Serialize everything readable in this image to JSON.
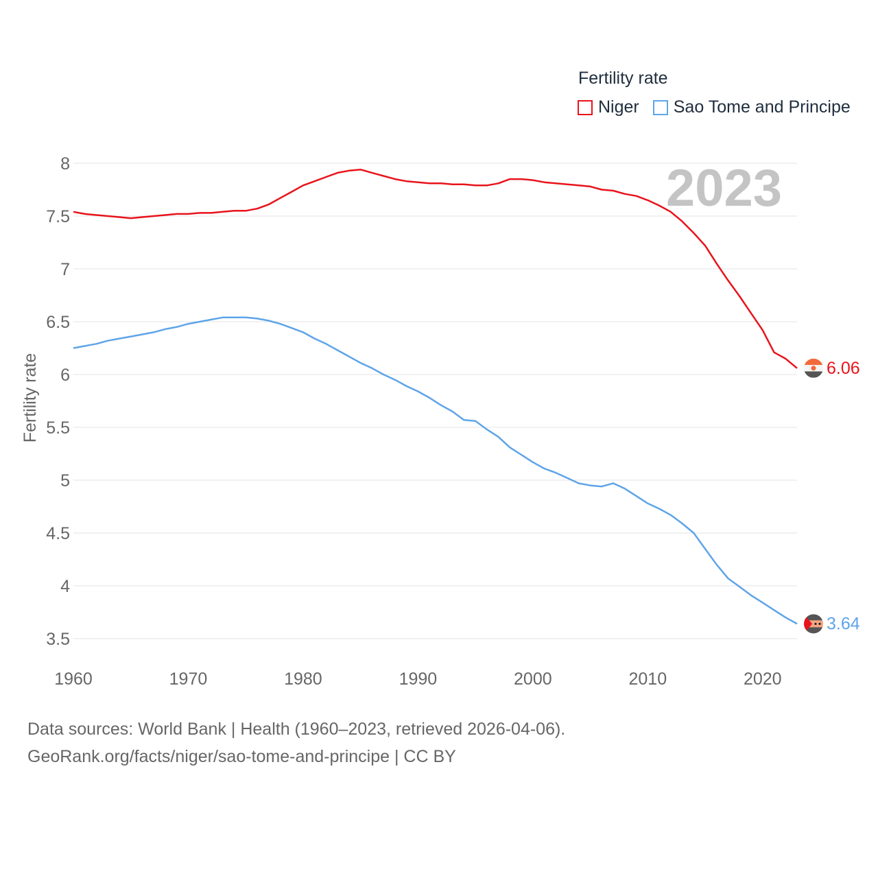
{
  "legend": {
    "title": "Fertility rate",
    "items": [
      {
        "label": "Niger",
        "color": "#e8131b"
      },
      {
        "label": "Sao Tome and Principe",
        "color": "#5ea4e8"
      }
    ]
  },
  "footer": {
    "line1": "Data sources: World Bank | Health (1960–2023, retrieved 2026-04-06).",
    "line2": "GeoRank.org/facts/niger/sao-tome-and-principe | CC BY"
  },
  "chart_data": {
    "type": "line",
    "title": "Fertility rate",
    "xlabel": "",
    "ylabel": "Fertility rate",
    "year_label": "2023",
    "xlim": [
      1960,
      2023
    ],
    "ylim": [
      3.5,
      8
    ],
    "x_ticks": [
      1960,
      1970,
      1980,
      1990,
      2000,
      2010,
      2020
    ],
    "y_ticks": [
      3.5,
      4,
      4.5,
      5,
      5.5,
      6,
      6.5,
      7,
      7.5,
      8
    ],
    "y_tick_labels": [
      "3.5",
      "4",
      "4.5",
      "5",
      "5.5",
      "6",
      "6.5",
      "7",
      "7.5",
      "8"
    ],
    "grid": true,
    "series": [
      {
        "name": "Niger",
        "color": "#e8131b",
        "end_label": "6.06",
        "x": [
          1960,
          1961,
          1962,
          1963,
          1964,
          1965,
          1966,
          1967,
          1968,
          1969,
          1970,
          1971,
          1972,
          1973,
          1974,
          1975,
          1976,
          1977,
          1978,
          1979,
          1980,
          1981,
          1982,
          1983,
          1984,
          1985,
          1986,
          1987,
          1988,
          1989,
          1990,
          1991,
          1992,
          1993,
          1994,
          1995,
          1996,
          1997,
          1998,
          1999,
          2000,
          2001,
          2002,
          2003,
          2004,
          2005,
          2006,
          2007,
          2008,
          2009,
          2010,
          2011,
          2012,
          2013,
          2014,
          2015,
          2016,
          2017,
          2018,
          2019,
          2020,
          2021,
          2022,
          2023
        ],
        "values": [
          7.54,
          7.52,
          7.51,
          7.5,
          7.49,
          7.48,
          7.49,
          7.5,
          7.51,
          7.52,
          7.52,
          7.53,
          7.53,
          7.54,
          7.55,
          7.55,
          7.57,
          7.61,
          7.67,
          7.73,
          7.79,
          7.83,
          7.87,
          7.91,
          7.93,
          7.94,
          7.91,
          7.88,
          7.85,
          7.83,
          7.82,
          7.81,
          7.81,
          7.8,
          7.8,
          7.79,
          7.79,
          7.81,
          7.85,
          7.85,
          7.84,
          7.82,
          7.81,
          7.8,
          7.79,
          7.78,
          7.75,
          7.74,
          7.71,
          7.69,
          7.65,
          7.6,
          7.54,
          7.45,
          7.34,
          7.22,
          7.05,
          6.89,
          6.74,
          6.58,
          6.42,
          6.21,
          6.15,
          6.06
        ]
      },
      {
        "name": "Sao Tome and Principe",
        "color": "#5ea4e8",
        "end_label": "3.64",
        "x": [
          1960,
          1961,
          1962,
          1963,
          1964,
          1965,
          1966,
          1967,
          1968,
          1969,
          1970,
          1971,
          1972,
          1973,
          1974,
          1975,
          1976,
          1977,
          1978,
          1979,
          1980,
          1981,
          1982,
          1983,
          1984,
          1985,
          1986,
          1987,
          1988,
          1989,
          1990,
          1991,
          1992,
          1993,
          1994,
          1995,
          1996,
          1997,
          1998,
          1999,
          2000,
          2001,
          2002,
          2003,
          2004,
          2005,
          2006,
          2007,
          2008,
          2009,
          2010,
          2011,
          2012,
          2013,
          2014,
          2015,
          2016,
          2017,
          2018,
          2019,
          2020,
          2021,
          2022,
          2023
        ],
        "values": [
          6.25,
          6.27,
          6.29,
          6.32,
          6.34,
          6.36,
          6.38,
          6.4,
          6.43,
          6.45,
          6.48,
          6.5,
          6.52,
          6.54,
          6.54,
          6.54,
          6.53,
          6.51,
          6.48,
          6.44,
          6.4,
          6.34,
          6.29,
          6.23,
          6.17,
          6.11,
          6.06,
          6.0,
          5.95,
          5.89,
          5.84,
          5.78,
          5.71,
          5.65,
          5.57,
          5.56,
          5.48,
          5.41,
          5.31,
          5.24,
          5.17,
          5.11,
          5.07,
          5.02,
          4.97,
          4.95,
          4.94,
          4.97,
          4.92,
          4.85,
          4.78,
          4.73,
          4.67,
          4.59,
          4.5,
          4.35,
          4.2,
          4.07,
          3.99,
          3.91,
          3.84,
          3.77,
          3.7,
          3.64
        ]
      }
    ]
  }
}
